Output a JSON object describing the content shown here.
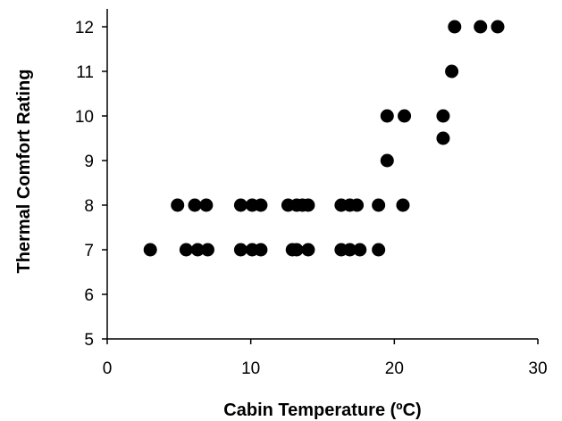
{
  "chart_data": {
    "type": "scatter",
    "title": "",
    "xlabel": "Cabin Temperature (ºC)",
    "ylabel": "Thermal Comfort Rating",
    "xlim": [
      0,
      30
    ],
    "ylim": [
      5,
      12.5
    ],
    "x_ticks": [
      0,
      10,
      20,
      30
    ],
    "y_ticks": [
      5,
      6,
      7,
      8,
      9,
      10,
      11,
      12
    ],
    "grid": false,
    "legend": "none",
    "marker_color": "#000000",
    "series": [
      {
        "points": [
          {
            "x": 3.0,
            "y": 7
          },
          {
            "x": 4.9,
            "y": 8
          },
          {
            "x": 5.5,
            "y": 7
          },
          {
            "x": 6.1,
            "y": 8
          },
          {
            "x": 6.3,
            "y": 7
          },
          {
            "x": 6.9,
            "y": 8
          },
          {
            "x": 7.0,
            "y": 7
          },
          {
            "x": 9.3,
            "y": 8
          },
          {
            "x": 9.3,
            "y": 7
          },
          {
            "x": 10.1,
            "y": 8
          },
          {
            "x": 10.1,
            "y": 7
          },
          {
            "x": 10.7,
            "y": 8
          },
          {
            "x": 10.7,
            "y": 7
          },
          {
            "x": 12.6,
            "y": 8
          },
          {
            "x": 12.9,
            "y": 7
          },
          {
            "x": 13.2,
            "y": 8
          },
          {
            "x": 13.2,
            "y": 7
          },
          {
            "x": 13.6,
            "y": 8
          },
          {
            "x": 14.0,
            "y": 8
          },
          {
            "x": 14.0,
            "y": 7
          },
          {
            "x": 16.3,
            "y": 8
          },
          {
            "x": 16.3,
            "y": 7
          },
          {
            "x": 16.9,
            "y": 8
          },
          {
            "x": 16.9,
            "y": 7
          },
          {
            "x": 17.4,
            "y": 8
          },
          {
            "x": 17.6,
            "y": 7
          },
          {
            "x": 18.9,
            "y": 8
          },
          {
            "x": 18.9,
            "y": 7
          },
          {
            "x": 19.5,
            "y": 10
          },
          {
            "x": 19.5,
            "y": 9
          },
          {
            "x": 20.7,
            "y": 10
          },
          {
            "x": 20.6,
            "y": 8
          },
          {
            "x": 23.4,
            "y": 10
          },
          {
            "x": 23.4,
            "y": 9.5
          },
          {
            "x": 24.0,
            "y": 11
          },
          {
            "x": 24.2,
            "y": 12
          },
          {
            "x": 26.0,
            "y": 12
          },
          {
            "x": 27.2,
            "y": 12
          }
        ]
      }
    ]
  }
}
